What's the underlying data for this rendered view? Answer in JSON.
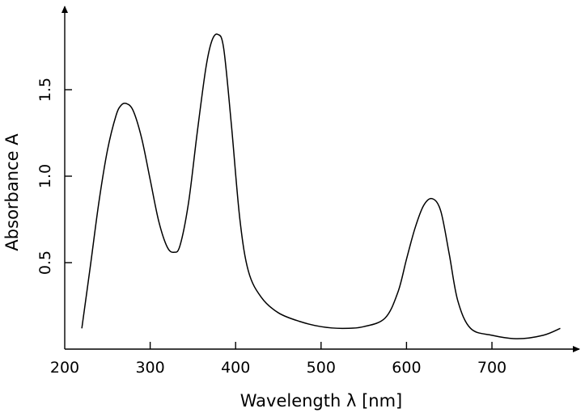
{
  "chart_data": {
    "type": "line",
    "title": "",
    "xlabel": "Wavelength λ [nm]",
    "ylabel": "Absorbance A",
    "xlim": [
      200,
      780
    ],
    "ylim": [
      0,
      1.95
    ],
    "grid": false,
    "x_ticks": [
      200,
      300,
      400,
      500,
      600,
      700
    ],
    "x_tick_labels": [
      "200",
      "300",
      "400",
      "500",
      "600",
      "700"
    ],
    "y_ticks": [
      0.5,
      1.0,
      1.5
    ],
    "y_tick_labels": [
      "0.5",
      "1.0",
      "1.5"
    ],
    "series": [
      {
        "points": [
          [
            220,
            0.12
          ],
          [
            230,
            0.48
          ],
          [
            240,
            0.85
          ],
          [
            250,
            1.15
          ],
          [
            260,
            1.35
          ],
          [
            266,
            1.41
          ],
          [
            272,
            1.42
          ],
          [
            280,
            1.38
          ],
          [
            290,
            1.22
          ],
          [
            300,
            0.98
          ],
          [
            310,
            0.74
          ],
          [
            320,
            0.59
          ],
          [
            328,
            0.56
          ],
          [
            335,
            0.6
          ],
          [
            345,
            0.85
          ],
          [
            355,
            1.25
          ],
          [
            365,
            1.62
          ],
          [
            372,
            1.78
          ],
          [
            379,
            1.82
          ],
          [
            386,
            1.74
          ],
          [
            395,
            1.3
          ],
          [
            405,
            0.75
          ],
          [
            415,
            0.45
          ],
          [
            430,
            0.3
          ],
          [
            450,
            0.21
          ],
          [
            475,
            0.16
          ],
          [
            500,
            0.13
          ],
          [
            525,
            0.12
          ],
          [
            550,
            0.13
          ],
          [
            575,
            0.18
          ],
          [
            590,
            0.33
          ],
          [
            600,
            0.52
          ],
          [
            610,
            0.7
          ],
          [
            620,
            0.83
          ],
          [
            630,
            0.87
          ],
          [
            640,
            0.8
          ],
          [
            650,
            0.55
          ],
          [
            660,
            0.28
          ],
          [
            675,
            0.12
          ],
          [
            700,
            0.08
          ],
          [
            730,
            0.06
          ],
          [
            760,
            0.08
          ],
          [
            780,
            0.12
          ]
        ]
      }
    ]
  }
}
